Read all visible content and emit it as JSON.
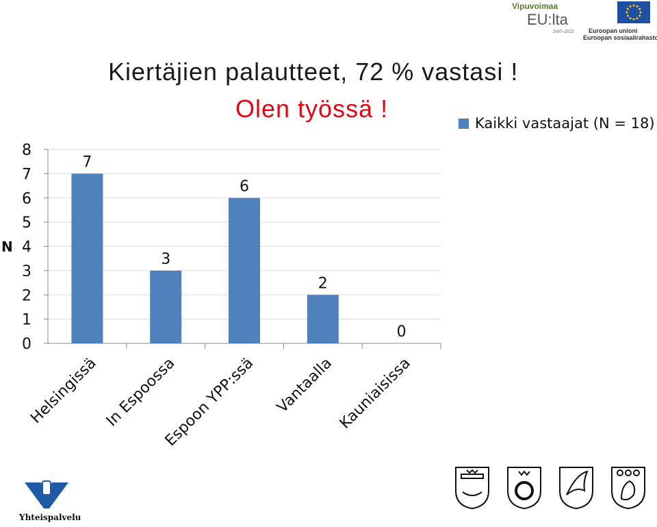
{
  "header": {
    "title": "Kiertäjien palautteet, 72 % vastasi !",
    "subtitle": "Olen työssä !",
    "subtitle_color": "#e30613"
  },
  "logos": {
    "vipuvoimaa_top": "Vipuvoimaa",
    "vipuvoimaa_main": "EU:lta",
    "vipuvoimaa_years": "2007–2013",
    "eu_line1": "Euroopan unioni",
    "eu_line2": "Euroopan sosiaalirahasto",
    "yhteispalvelu": "Yhteispalvelu"
  },
  "chart_data": {
    "type": "bar",
    "title": "",
    "ylabel": "N",
    "xlabel": "",
    "categories": [
      "Helsingissä",
      "In Espoossa",
      "Espoon YPP:ssä",
      "Vantaalla",
      "Kauniaisissa"
    ],
    "series": [
      {
        "name": "Kaikki vastaajat (N = 18)",
        "values": [
          7,
          3,
          6,
          2,
          0
        ],
        "color": "#4f81bd"
      }
    ],
    "yticks": [
      "0",
      "1",
      "2",
      "3",
      "4",
      "5",
      "6",
      "7",
      "8"
    ],
    "ylim": [
      0,
      8
    ],
    "grid": true,
    "legend_position": "top-right"
  }
}
